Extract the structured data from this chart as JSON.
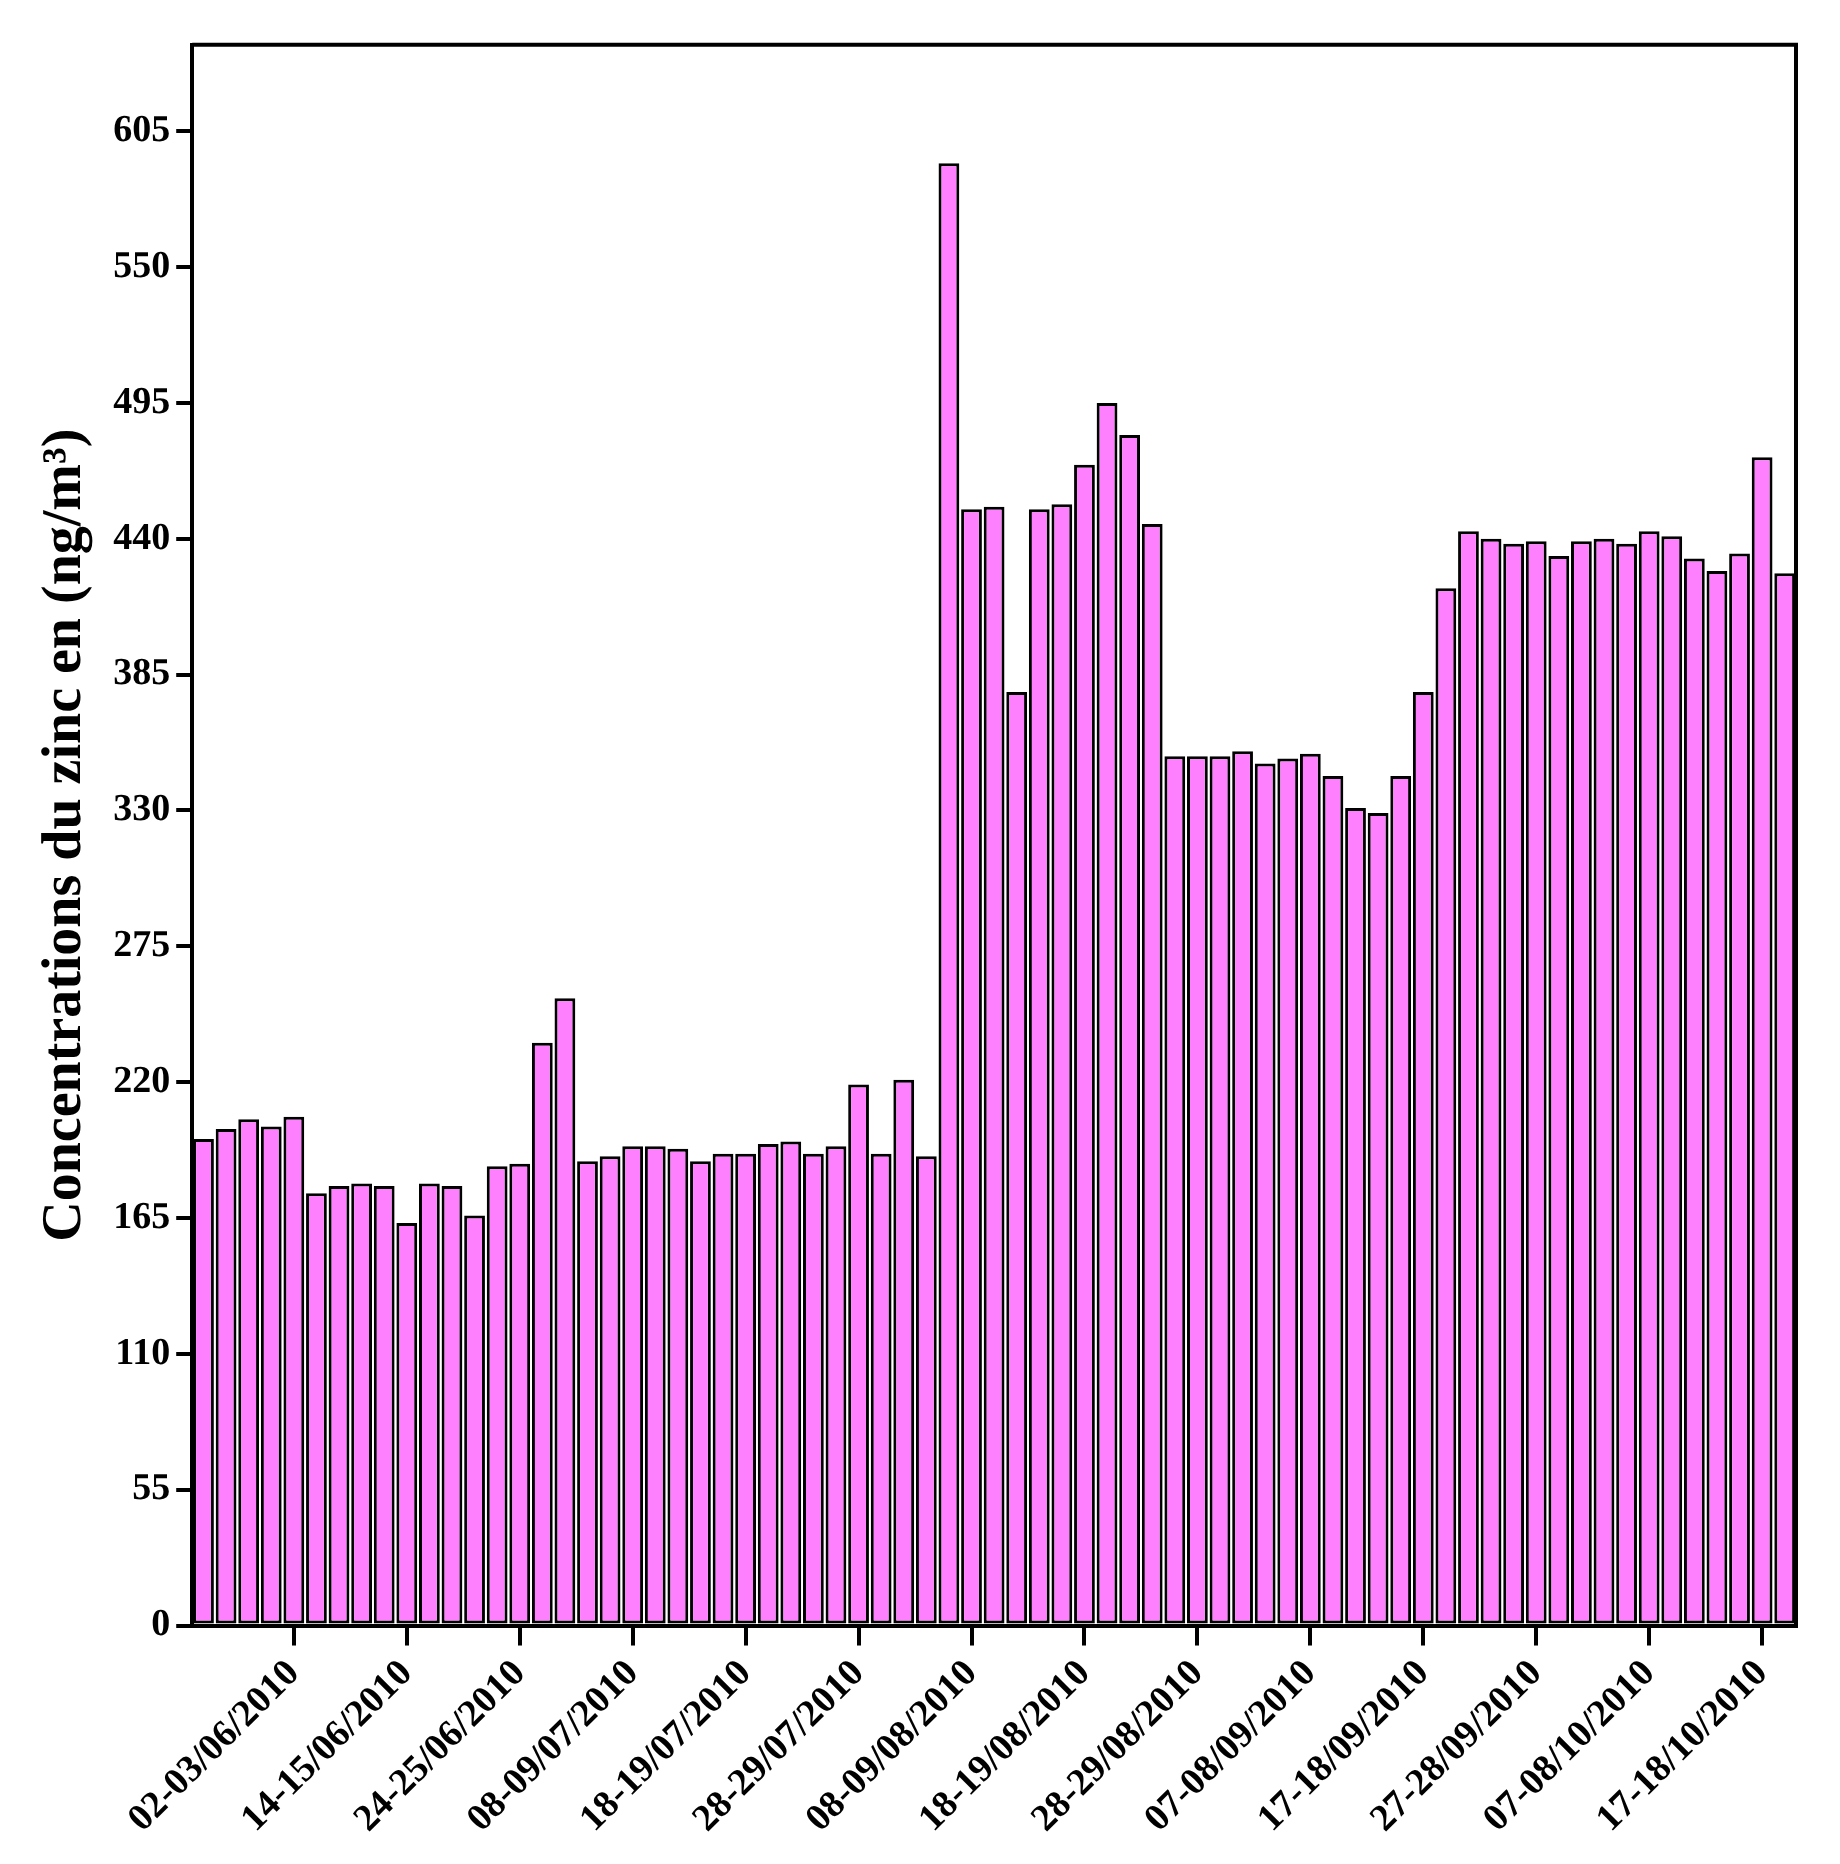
{
  "chart_data": {
    "type": "bar",
    "ylabel": "Concentrations du zinc en (ng/m³)",
    "categories": [
      null,
      null,
      null,
      null,
      "02-03/06/2010",
      null,
      null,
      null,
      null,
      "14-15/06/2010",
      null,
      null,
      null,
      null,
      "24-25/06/2010",
      null,
      null,
      null,
      null,
      "08-09/07/2010",
      null,
      null,
      null,
      null,
      "18-19/07/2010",
      null,
      null,
      null,
      null,
      "28-29/07/2010",
      null,
      null,
      null,
      null,
      "08-09/08/2010",
      null,
      null,
      null,
      null,
      "18-19/08/2010",
      null,
      null,
      null,
      null,
      "28-29/08/2010",
      null,
      null,
      null,
      null,
      "07-08/09/2010",
      null,
      null,
      null,
      null,
      "17-18/09/2010",
      null,
      null,
      null,
      null,
      "27-28/09/2010",
      null,
      null,
      null,
      null,
      "07-08/10/2010",
      null,
      null,
      null,
      null,
      "17-18/10/2010",
      null
    ],
    "values": [
      197,
      201,
      205,
      202,
      206,
      175,
      178,
      179,
      178,
      163,
      179,
      178,
      166,
      186,
      187,
      236,
      254,
      188,
      190,
      194,
      194,
      193,
      188,
      191,
      191,
      195,
      196,
      191,
      194,
      219,
      191,
      221,
      190,
      592,
      452,
      453,
      378,
      452,
      454,
      470,
      495,
      482,
      446,
      352,
      352,
      352,
      354,
      349,
      351,
      353,
      344,
      331,
      329,
      344,
      378,
      420,
      443,
      440,
      438,
      439,
      433,
      439,
      440,
      438,
      443,
      441,
      432,
      427,
      434,
      473,
      426
    ],
    "color": "#ff80ff",
    "ylim": [
      0,
      640
    ],
    "yticks": [
      0,
      55,
      110,
      165,
      220,
      275,
      330,
      385,
      440,
      495,
      550,
      605
    ],
    "grid": false,
    "legend": false
  }
}
